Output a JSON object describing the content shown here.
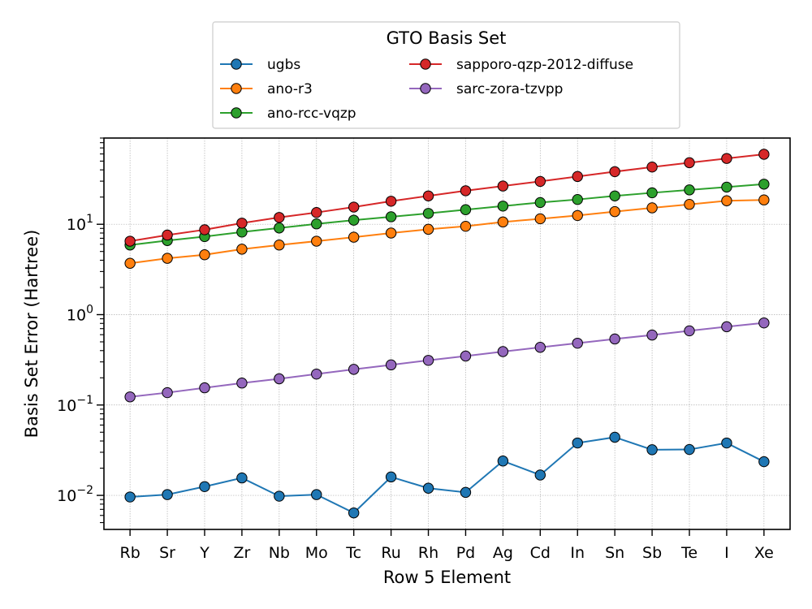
{
  "chart_data": {
    "type": "line",
    "title": "",
    "xlabel": "Row 5 Element",
    "ylabel": "Basis Set Error (Hartree)",
    "yscale": "log",
    "ylim": [
      0.0042,
      90
    ],
    "grid": true,
    "legend": {
      "title": "GTO Basis Set",
      "placement": "above-plot",
      "columns": 2
    },
    "categories": [
      "Rb",
      "Sr",
      "Y",
      "Zr",
      "Nb",
      "Mo",
      "Tc",
      "Ru",
      "Rh",
      "Pd",
      "Ag",
      "Cd",
      "In",
      "Sn",
      "Sb",
      "Te",
      "I",
      "Xe"
    ],
    "y_ticks": [
      {
        "value": 0.01,
        "base": "10",
        "exp": "−2"
      },
      {
        "value": 0.1,
        "base": "10",
        "exp": "−1"
      },
      {
        "value": 1,
        "base": "10",
        "exp": "0"
      },
      {
        "value": 10,
        "base": "10",
        "exp": "1"
      }
    ],
    "series": [
      {
        "name": "ugbs",
        "color": "#1f77b4",
        "values": [
          0.0096,
          0.0102,
          0.0125,
          0.0156,
          0.0098,
          0.0102,
          0.0064,
          0.016,
          0.012,
          0.0108,
          0.024,
          0.0168,
          0.038,
          0.044,
          0.032,
          0.0322,
          0.038,
          0.0236
        ]
      },
      {
        "name": "ano-r3",
        "color": "#ff7f0e",
        "values": [
          3.7,
          4.2,
          4.6,
          5.3,
          5.9,
          6.5,
          7.2,
          8.0,
          8.8,
          9.5,
          10.6,
          11.5,
          12.5,
          13.8,
          15.2,
          16.6,
          18.2,
          18.6
        ]
      },
      {
        "name": "ano-rcc-vqzp",
        "color": "#2ca02c",
        "values": [
          5.9,
          6.6,
          7.3,
          8.2,
          9.1,
          10.1,
          11.1,
          12.1,
          13.2,
          14.5,
          15.9,
          17.4,
          18.8,
          20.6,
          22.3,
          24.0,
          25.8,
          27.8
        ]
      },
      {
        "name": "sapporo-qzp-2012-diffuse",
        "color": "#d62728",
        "values": [
          6.5,
          7.6,
          8.7,
          10.3,
          11.9,
          13.5,
          15.5,
          18.0,
          20.6,
          23.5,
          26.5,
          29.8,
          33.8,
          38.2,
          43.0,
          48.0,
          53.5,
          59.5
        ]
      },
      {
        "name": "sarc-zora-tzvpp",
        "color": "#9467bd",
        "values": [
          0.123,
          0.137,
          0.155,
          0.175,
          0.195,
          0.22,
          0.248,
          0.278,
          0.312,
          0.348,
          0.39,
          0.435,
          0.483,
          0.538,
          0.595,
          0.662,
          0.735,
          0.81
        ]
      }
    ]
  }
}
